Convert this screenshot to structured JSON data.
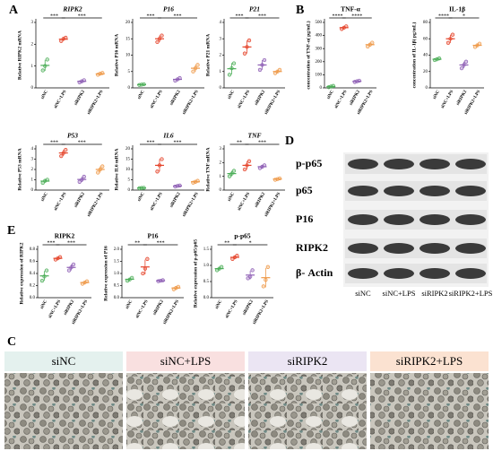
{
  "panels": [
    "A",
    "B",
    "C",
    "D",
    "E"
  ],
  "group_colors": [
    "#4cae58",
    "#e5452c",
    "#8e5fb5",
    "#ef9a4a"
  ],
  "chart_data": [
    {
      "type": "dot",
      "title": "RIPK2",
      "italic": true,
      "ylabel": "Relative RIPK2 mRNA",
      "categories": [
        "siNC",
        "siNC+LPS",
        "siRIPK2",
        "siRIPK2+LPS"
      ],
      "ylim": [
        0,
        3
      ],
      "yticks": [
        0,
        1,
        2,
        3
      ],
      "points": [
        [
          0.8,
          1.0,
          1.3
        ],
        [
          2.15,
          2.25,
          2.3
        ],
        [
          0.25,
          0.3,
          0.35
        ],
        [
          0.6,
          0.65,
          0.68
        ]
      ],
      "means": [
        1.03,
        2.23,
        0.3,
        0.64
      ],
      "sd": [
        0.25,
        0.08,
        0.05,
        0.04
      ],
      "significance": [
        {
          "label": "***",
          "groups": [
            0,
            1
          ]
        },
        {
          "label": "***",
          "groups": [
            1,
            3
          ]
        }
      ]
    },
    {
      "type": "dot",
      "title": "P16",
      "italic": true,
      "ylabel": "Relative P16 mRNA",
      "categories": [
        "siNC",
        "siNC+LPS",
        "siRIPK2",
        "siRIPK2+LPS"
      ],
      "ylim": [
        0,
        20
      ],
      "yticks": [
        0,
        5,
        10,
        15,
        20
      ],
      "points": [
        [
          0.9,
          1,
          1.1
        ],
        [
          14,
          15,
          16
        ],
        [
          2.2,
          2.6,
          3
        ],
        [
          5,
          6,
          7
        ]
      ],
      "means": [
        1,
        15,
        2.6,
        6
      ],
      "sd": [
        0.1,
        1,
        0.4,
        1
      ],
      "significance": [
        {
          "label": "***",
          "groups": [
            0,
            1
          ]
        },
        {
          "label": "***",
          "groups": [
            1,
            3
          ]
        }
      ]
    },
    {
      "type": "dot",
      "title": "P21",
      "italic": true,
      "ylabel": "Relative P21 mRNA",
      "categories": [
        "siNC",
        "siNC+LPS",
        "siRIPK2",
        "siRIPK2+LPS"
      ],
      "ylim": [
        0,
        4
      ],
      "yticks": [
        0,
        1,
        2,
        3,
        4
      ],
      "points": [
        [
          0.8,
          1.2,
          1.5
        ],
        [
          2.1,
          2.5,
          2.9
        ],
        [
          1.1,
          1.4,
          1.7
        ],
        [
          0.9,
          1.0,
          1.1
        ]
      ],
      "means": [
        1.17,
        2.5,
        1.4,
        1.0
      ],
      "sd": [
        0.35,
        0.4,
        0.3,
        0.1
      ],
      "significance": [
        {
          "label": "***",
          "groups": [
            0,
            1
          ]
        },
        {
          "label": "***",
          "groups": [
            1,
            3
          ]
        }
      ]
    },
    {
      "type": "dot",
      "title": "P53",
      "italic": true,
      "ylabel": "Relative P53 mRNA",
      "categories": [
        "siNC",
        "siNC+LPS",
        "siRIPK2",
        "siRIPK2+LPS"
      ],
      "ylim": [
        0,
        4
      ],
      "yticks": [
        0,
        1,
        2,
        3,
        4
      ],
      "points": [
        [
          0.7,
          0.9,
          1.0
        ],
        [
          3.3,
          3.6,
          3.9
        ],
        [
          0.8,
          1.0,
          1.3
        ],
        [
          1.7,
          2.0,
          2.3
        ]
      ],
      "means": [
        0.87,
        3.6,
        1.03,
        2.0
      ],
      "sd": [
        0.15,
        0.3,
        0.25,
        0.3
      ],
      "significance": [
        {
          "label": "***",
          "groups": [
            0,
            1
          ]
        },
        {
          "label": "***",
          "groups": [
            1,
            3
          ]
        }
      ]
    },
    {
      "type": "dot",
      "title": "IL6",
      "italic": true,
      "ylabel": "Relative IL6 mRNA",
      "categories": [
        "siNC",
        "siNC+LPS",
        "siRIPK2",
        "siRIPK2+LPS"
      ],
      "ylim": [
        0,
        20
      ],
      "yticks": [
        0,
        5,
        10,
        15,
        20
      ],
      "points": [
        [
          0.9,
          1,
          1.1
        ],
        [
          9,
          12,
          15
        ],
        [
          1.7,
          2,
          2.2
        ],
        [
          3.6,
          4,
          4.5
        ]
      ],
      "means": [
        1,
        12,
        1.97,
        4.03
      ],
      "sd": [
        0.1,
        3,
        0.25,
        0.45
      ],
      "significance": [
        {
          "label": "***",
          "groups": [
            0,
            1
          ]
        },
        {
          "label": "***",
          "groups": [
            1,
            3
          ]
        }
      ]
    },
    {
      "type": "dot",
      "title": "TNF",
      "italic": true,
      "ylabel": "Relative TNF mRNA",
      "categories": [
        "siNC",
        "siNC+LPS",
        "siRIPK2",
        "siRIPK2+LPS"
      ],
      "ylim": [
        0,
        3
      ],
      "yticks": [
        0,
        1,
        2,
        3
      ],
      "points": [
        [
          1.0,
          1.2,
          1.4
        ],
        [
          1.5,
          1.8,
          2.1
        ],
        [
          1.6,
          1.7,
          1.8
        ],
        [
          0.75,
          0.8,
          0.85
        ]
      ],
      "means": [
        1.2,
        1.8,
        1.7,
        0.8
      ],
      "sd": [
        0.2,
        0.3,
        0.1,
        0.05
      ],
      "significance": [
        {
          "label": "**",
          "groups": [
            0,
            1
          ]
        },
        {
          "label": "***",
          "groups": [
            1,
            3
          ]
        }
      ]
    },
    {
      "type": "dot",
      "title": "TNF-α",
      "italic": false,
      "ylabel": "concentration of TNF-α( pg/mL)",
      "categories": [
        "siNC",
        "siNC+LPS",
        "siRIPK2",
        "siRIPK2+LPS"
      ],
      "ylim": [
        0,
        500
      ],
      "yticks": [
        0,
        100,
        200,
        300,
        400,
        500
      ],
      "points": [
        [
          5,
          10,
          15
        ],
        [
          450,
          460,
          470
        ],
        [
          45,
          50,
          55
        ],
        [
          315,
          330,
          345
        ]
      ],
      "means": [
        10,
        460,
        50,
        330
      ],
      "sd": [
        5,
        10,
        5,
        15
      ],
      "significance": [
        {
          "label": "****",
          "groups": [
            0,
            1
          ]
        },
        {
          "label": "****",
          "groups": [
            1,
            3
          ]
        }
      ]
    },
    {
      "type": "dot",
      "title": "IL-1β",
      "italic": false,
      "ylabel": "concentration of IL-1β( pg/mL)",
      "categories": [
        "siNC",
        "siNC+LPS",
        "siRIPK2",
        "siRIPK2+LPS"
      ],
      "ylim": [
        0,
        80
      ],
      "yticks": [
        0,
        20,
        40,
        60,
        80
      ],
      "points": [
        [
          34,
          35,
          36
        ],
        [
          55,
          60,
          65
        ],
        [
          24,
          28,
          32
        ],
        [
          50,
          52,
          54
        ]
      ],
      "means": [
        35,
        60,
        28,
        52
      ],
      "sd": [
        1,
        5,
        4,
        2
      ],
      "significance": [
        {
          "label": "****",
          "groups": [
            0,
            1
          ]
        },
        {
          "label": "*",
          "groups": [
            1,
            3
          ]
        }
      ]
    },
    {
      "type": "dot",
      "title": "RIPK2",
      "italic": false,
      "ylabel": "Relative expression of RIPK2",
      "categories": [
        "siNC",
        "siNC+LPS",
        "siRIPK2",
        "siRIPK2+LPS"
      ],
      "ylim": [
        0,
        0.8
      ],
      "yticks": [
        {
          "value": 0,
          "label": "0.0"
        },
        0.2,
        0.4,
        0.6,
        0.8
      ],
      "points": [
        [
          0.28,
          0.35,
          0.45
        ],
        [
          0.63,
          0.65,
          0.67
        ],
        [
          0.45,
          0.5,
          0.55
        ],
        [
          0.23,
          0.25,
          0.27
        ]
      ],
      "means": [
        0.36,
        0.65,
        0.5,
        0.25
      ],
      "sd": [
        0.08,
        0.02,
        0.05,
        0.02
      ],
      "significance": [
        {
          "label": "***",
          "groups": [
            0,
            1
          ]
        },
        {
          "label": "***",
          "groups": [
            1,
            3
          ]
        }
      ]
    },
    {
      "type": "dot",
      "title": "P16",
      "italic": false,
      "ylabel": "Relative expression of P16",
      "categories": [
        "siNC",
        "siNC+LPS",
        "siRIPK2",
        "siRIPK2+LPS"
      ],
      "ylim": [
        0,
        2
      ],
      "yticks": [
        {
          "value": 0,
          "label": "0.0"
        },
        0.5,
        {
          "value": 1,
          "label": "1.0"
        },
        1.5,
        {
          "value": 2,
          "label": "2.0"
        }
      ],
      "points": [
        [
          0.7,
          0.75,
          0.82
        ],
        [
          1.0,
          1.2,
          1.6
        ],
        [
          0.68,
          0.7,
          0.72
        ],
        [
          0.35,
          0.4,
          0.45
        ]
      ],
      "means": [
        0.76,
        1.27,
        0.7,
        0.4
      ],
      "sd": [
        0.06,
        0.3,
        0.02,
        0.05
      ],
      "significance": [
        {
          "label": "**",
          "groups": [
            0,
            1
          ]
        },
        {
          "label": "***",
          "groups": [
            1,
            3
          ]
        }
      ]
    },
    {
      "type": "dot",
      "title": "p-p65",
      "italic": false,
      "ylabel": "Relative expression of p-p65/p65",
      "categories": [
        "siNC",
        "siNC+LPS",
        "siRIPK2",
        "siRIPK2+LPS"
      ],
      "ylim": [
        0,
        1.5
      ],
      "yticks": [
        {
          "value": 0,
          "label": "0.0"
        },
        0.5,
        {
          "value": 1,
          "label": "1.0"
        },
        1.5
      ],
      "points": [
        [
          0.85,
          0.9,
          0.95
        ],
        [
          1.2,
          1.25,
          1.3
        ],
        [
          0.6,
          0.65,
          0.85
        ],
        [
          0.35,
          0.55,
          0.95
        ]
      ],
      "means": [
        0.9,
        1.25,
        0.7,
        0.62
      ],
      "sd": [
        0.05,
        0.05,
        0.13,
        0.3
      ],
      "significance": [
        {
          "label": "**",
          "groups": [
            0,
            1
          ]
        },
        {
          "label": "*",
          "groups": [
            1,
            3
          ]
        }
      ]
    }
  ],
  "blot": {
    "rows": [
      "p-p65",
      "p65",
      "P16",
      "RIPK2",
      "β- Actin"
    ],
    "lanes": [
      "siNC",
      "siNC+LPS",
      "siRIPK2",
      "siRIPK2+LPS"
    ]
  },
  "microscopy": {
    "labels": [
      "siNC",
      "siNC+LPS",
      "siRIPK2",
      "siRIPK2+LPS"
    ]
  }
}
